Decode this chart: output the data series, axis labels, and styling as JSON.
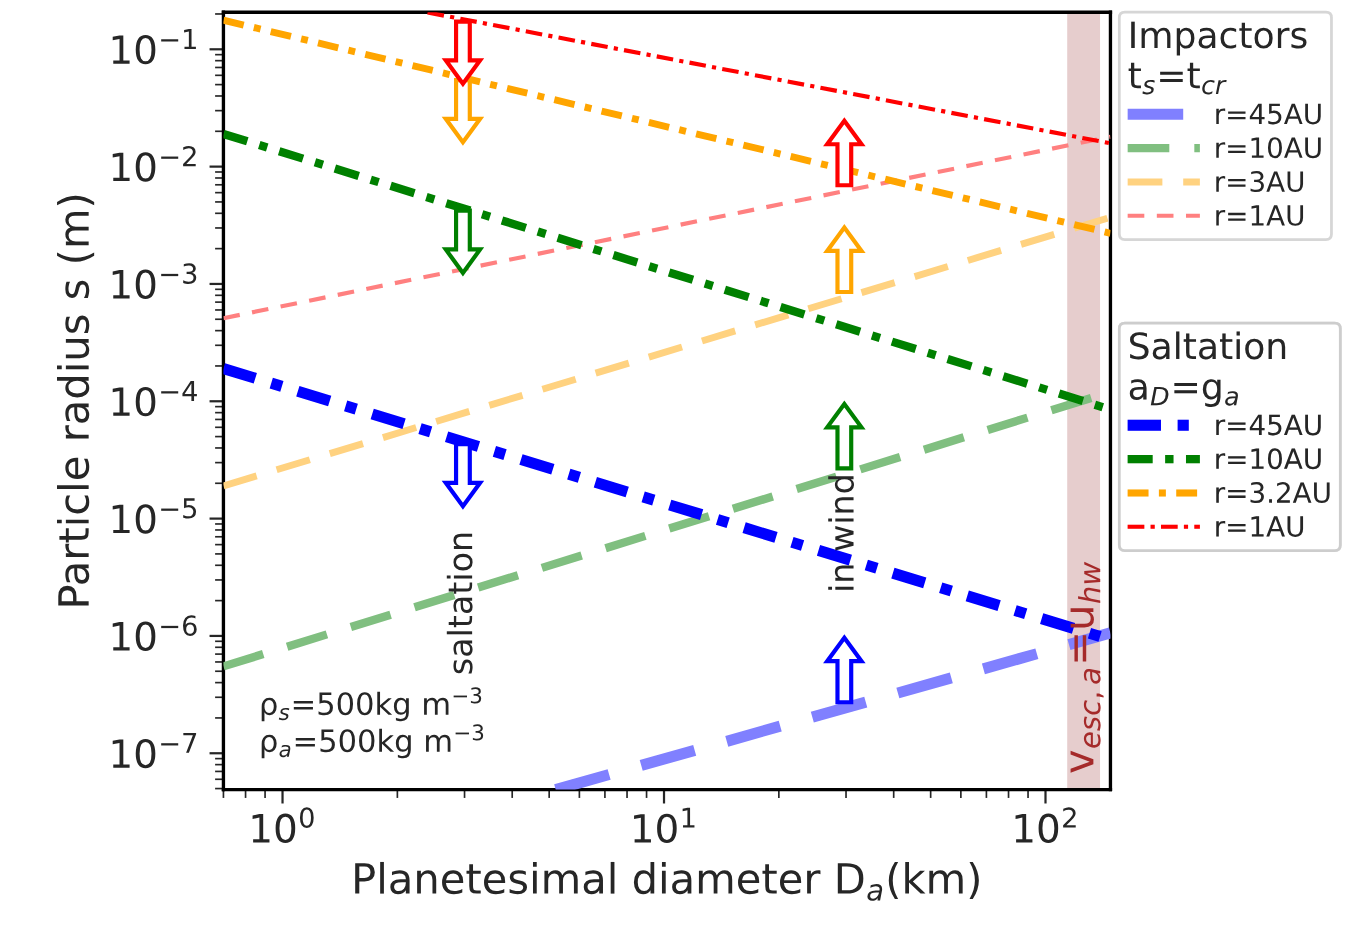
{
  "chart_data": {
    "type": "line",
    "xlabel": "Planetesimal diameter D$_{a}$(km)",
    "ylabel": "Particle radius s (m)",
    "legend_title": [
      "Impactors\nt$_{s}$=t$_{cr}$",
      "Saltation\na$_{D}$=g$_{a}$"
    ],
    "legend": "right",
    "log": "xy",
    "xlim": [
      0.7,
      148
    ],
    "ylim": [
      4.9e-08,
      0.207
    ],
    "xticks": [
      {
        "value": 1,
        "label": "10$^{0}$"
      },
      {
        "value": 10,
        "label": "10$^{1}$"
      },
      {
        "value": 100,
        "label": "10$^{2}$"
      }
    ],
    "yticks": [
      {
        "value": 1e-07,
        "label": "10$^{−7}$"
      },
      {
        "value": 1e-06,
        "label": "10$^{−6}$"
      },
      {
        "value": 1e-05,
        "label": "10$^{−5}$"
      },
      {
        "value": 0.0001,
        "label": "10$^{−4}$"
      },
      {
        "value": 0.001,
        "label": "10$^{−3}$"
      },
      {
        "value": 0.01,
        "label": "10$^{−2}$"
      },
      {
        "value": 0.1,
        "label": "10$^{−1}$"
      }
    ],
    "series": [
      {
        "name": "r=45AU",
        "color": "#8080ff",
        "line_style": "dashed",
        "x": [
          5.2,
          148
        ],
        "values": [
          4.9e-08,
          1.06e-06
        ]
      },
      {
        "name": "r=10AU",
        "color": "#80bf80",
        "line_style": "dashed",
        "x": [
          0.7,
          148
        ],
        "values": [
          5.5e-07,
          0.00012
        ]
      },
      {
        "name": "r=3AU",
        "color": "#ffd280",
        "line_style": "dashed",
        "x": [
          0.7,
          148
        ],
        "values": [
          1.9e-05,
          0.0037
        ]
      },
      {
        "name": "r=1AU",
        "color": "#ff8080",
        "line_style": "dashed",
        "x": [
          0.7,
          148
        ],
        "values": [
          0.00051,
          0.018
        ]
      },
      {
        "name": "r=45AU",
        "color": "#0000ff",
        "line_style": "dashdot",
        "x": [
          0.7,
          148
        ],
        "values": [
          0.00019,
          9.3e-07
        ]
      },
      {
        "name": "r=10AU",
        "color": "#008000",
        "line_style": "dashdot",
        "x": [
          0.7,
          148
        ],
        "values": [
          0.019,
          8.5e-05
        ]
      },
      {
        "name": "r=3.2AU",
        "color": "#ffa500",
        "line_style": "dashdot",
        "x": [
          0.7,
          148
        ],
        "values": [
          0.177,
          0.0027
        ]
      },
      {
        "name": "r=1AU",
        "color": "#ff0000",
        "line_style": "dashdot",
        "x": [
          2.4,
          148
        ],
        "values": [
          0.206,
          0.0158
        ]
      }
    ],
    "bands": [
      {
        "axis": "x",
        "from": 114,
        "to": 139,
        "label": "v$_{esc,a}$=u$_{hw}$",
        "color": "#e6cdcd"
      }
    ],
    "annotations": [
      "saltation",
      "in wind",
      "ρ$_{s}$=500kg m$^{−3}$\nρ$_{a}$=500kg m$^{−3}$"
    ]
  }
}
